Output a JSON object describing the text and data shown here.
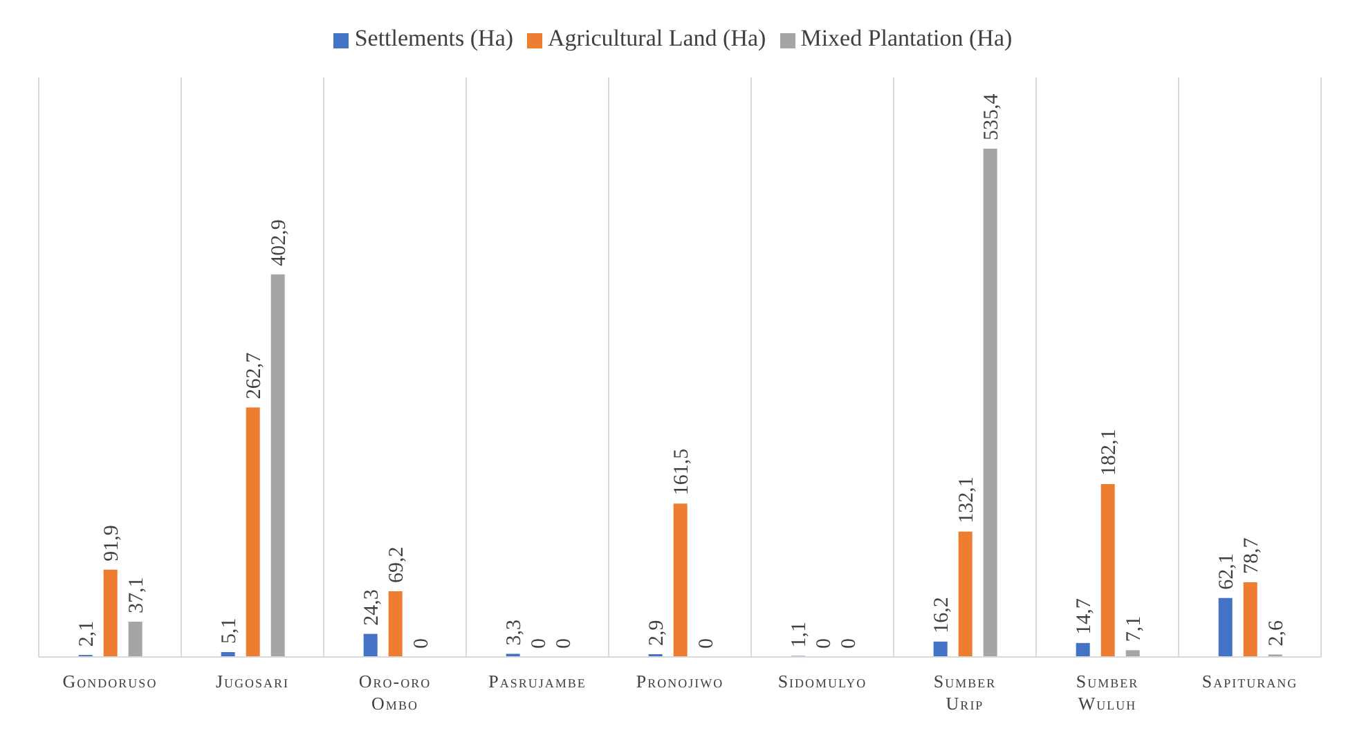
{
  "chart_data": {
    "type": "bar",
    "categories": [
      "Gondoruso",
      "Jugosari",
      "Oro-oro Ombo",
      "Pasrujambe",
      "Pronojiwo",
      "Sidomulyo",
      "Sumber Urip",
      "Sumber Wuluh",
      "Sapiturang"
    ],
    "series": [
      {
        "name": "Settlements (Ha)",
        "color": "#4472c4",
        "values": [
          2.1,
          5.1,
          24.3,
          3.3,
          2.9,
          1.1,
          16.2,
          14.7,
          62.1
        ],
        "value_labels": [
          "2,1",
          "5,1",
          "24,3",
          "3,3",
          "2,9",
          "1,1",
          "16,2",
          "14,7",
          "62,1"
        ]
      },
      {
        "name": "Agricultural Land (Ha)",
        "color": "#ed7d31",
        "values": [
          91.9,
          262.7,
          69.2,
          0,
          161.5,
          0,
          132.1,
          182.1,
          78.7
        ],
        "value_labels": [
          "91,9",
          "262,7",
          "69,2",
          "0",
          "161,5",
          "0",
          "132,1",
          "182,1",
          "78,7"
        ]
      },
      {
        "name": "Mixed Plantation (Ha)",
        "color": "#a5a5a5",
        "values": [
          37.1,
          402.9,
          0,
          0,
          0,
          0,
          535.4,
          7.1,
          2.6
        ],
        "value_labels": [
          "37,1",
          "402,9",
          "0",
          "0",
          "0",
          "0",
          "535,4",
          "7,1",
          "2,6"
        ]
      }
    ],
    "legend": "top",
    "grid": "x",
    "tick_labels": "x"
  }
}
